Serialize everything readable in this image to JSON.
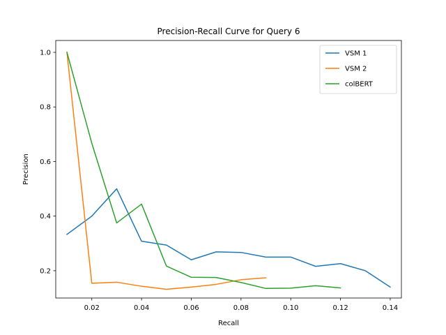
{
  "chart_data": {
    "type": "line",
    "title": "Precision-Recall Curve for Query 6",
    "xlabel": "Recall",
    "ylabel": "Precision",
    "xlim": [
      0.0055,
      0.1445
    ],
    "ylim": [
      0.1,
      1.0435
    ],
    "xticks": [
      0.02,
      0.04,
      0.06,
      0.08,
      0.1,
      0.12,
      0.14
    ],
    "xtick_labels": [
      "0.02",
      "0.04",
      "0.06",
      "0.08",
      "0.10",
      "0.12",
      "0.14"
    ],
    "yticks": [
      0.2,
      0.4,
      0.6,
      0.8,
      1.0
    ],
    "ytick_labels": [
      "0.2",
      "0.4",
      "0.6",
      "0.8",
      "1.0"
    ],
    "grid": false,
    "legend_position": "top-right",
    "series": [
      {
        "name": "VSM 1",
        "color": "#1f77b4",
        "x": [
          0.01,
          0.02,
          0.03,
          0.04,
          0.05,
          0.06,
          0.07,
          0.08,
          0.09,
          0.1,
          0.11,
          0.12,
          0.13,
          0.14
        ],
        "y": [
          0.333,
          0.4,
          0.5,
          0.308,
          0.294,
          0.24,
          0.269,
          0.267,
          0.25,
          0.25,
          0.216,
          0.226,
          0.2,
          0.14
        ]
      },
      {
        "name": "VSM 2",
        "color": "#ff7f0e",
        "x": [
          0.01,
          0.02,
          0.03,
          0.04,
          0.05,
          0.06,
          0.07,
          0.08,
          0.09
        ],
        "y": [
          1.0,
          0.154,
          0.158,
          0.143,
          0.132,
          0.14,
          0.15,
          0.167,
          0.174
        ]
      },
      {
        "name": "colBERT",
        "color": "#2ca02c",
        "x": [
          0.01,
          0.02,
          0.03,
          0.04,
          0.05,
          0.06,
          0.07,
          0.08,
          0.09,
          0.1,
          0.11,
          0.12
        ],
        "y": [
          1.0,
          0.667,
          0.375,
          0.444,
          0.217,
          0.176,
          0.175,
          0.157,
          0.135,
          0.136,
          0.145,
          0.137
        ]
      }
    ]
  }
}
